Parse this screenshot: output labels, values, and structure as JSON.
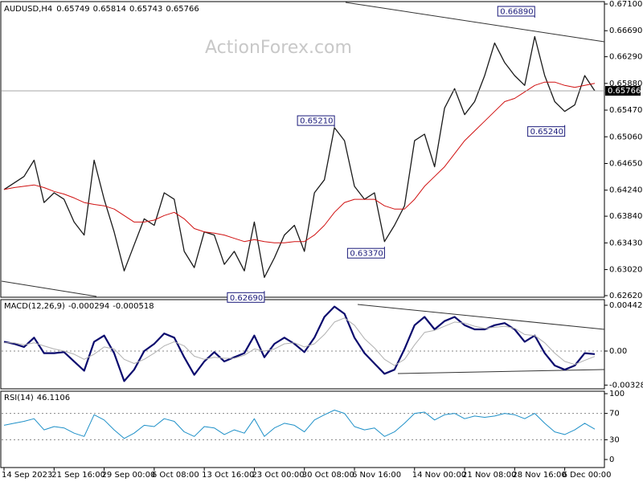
{
  "watermark": "ActionForex.com",
  "chart_data": [
    {
      "type": "line",
      "title": "AUDUSD,H4",
      "last_bar": [
        0.65749,
        0.65814,
        0.65743
      ],
      "ylim": [
        0.62595,
        0.67137
      ],
      "yticks": [
        {
          "value": 0.671,
          "label": "0.67100"
        },
        {
          "value": 0.6669,
          "label": "0.66690"
        },
        {
          "value": 0.6629,
          "label": "0.66290"
        },
        {
          "value": 0.6588,
          "label": "0.65880"
        },
        {
          "value": 0.6547,
          "label": "0.65470"
        },
        {
          "value": 0.6506,
          "label": "0.65060"
        },
        {
          "value": 0.6465,
          "label": "0.64650"
        },
        {
          "value": 0.6424,
          "label": "0.64240"
        },
        {
          "value": 0.6384,
          "label": "0.63840"
        },
        {
          "value": 0.6343,
          "label": "0.63430"
        },
        {
          "value": 0.6302,
          "label": "0.63020"
        },
        {
          "value": 0.6262,
          "label": "0.62620"
        }
      ],
      "grid": false,
      "series": [
        {
          "color": "#1a1a1a",
          "values": [
            0.6425,
            0.6435,
            0.6445,
            0.647,
            0.6405,
            0.642,
            0.641,
            0.6375,
            0.6355,
            0.647,
            0.641,
            0.636,
            0.63,
            0.634,
            0.638,
            0.637,
            0.642,
            0.641,
            0.633,
            0.6305,
            0.636,
            0.6355,
            0.631,
            0.633,
            0.63,
            0.6375,
            0.629,
            0.632,
            0.6355,
            0.637,
            0.633,
            0.642,
            0.644,
            0.652,
            0.65,
            0.643,
            0.641,
            0.642,
            0.6345,
            0.637,
            0.64,
            0.65,
            0.651,
            0.646,
            0.655,
            0.658,
            0.654,
            0.656,
            0.66,
            0.665,
            0.662,
            0.66,
            0.6585,
            0.666,
            0.66,
            0.656,
            0.6545,
            0.6555,
            0.66,
            0.65766
          ]
        },
        {
          "color": "#d01010",
          "values": [
            0.6425,
            0.6428,
            0.643,
            0.6432,
            0.6428,
            0.6422,
            0.6418,
            0.6412,
            0.6405,
            0.6402,
            0.64,
            0.6395,
            0.6385,
            0.6375,
            0.6375,
            0.6378,
            0.6385,
            0.639,
            0.638,
            0.6365,
            0.636,
            0.6358,
            0.6355,
            0.635,
            0.6345,
            0.6348,
            0.6345,
            0.6343,
            0.6343,
            0.6345,
            0.6345,
            0.6355,
            0.637,
            0.639,
            0.6405,
            0.641,
            0.641,
            0.641,
            0.64,
            0.6395,
            0.6395,
            0.641,
            0.643,
            0.6445,
            0.646,
            0.648,
            0.65,
            0.6515,
            0.653,
            0.6545,
            0.656,
            0.6565,
            0.6575,
            0.6585,
            0.659,
            0.659,
            0.6585,
            0.6582,
            0.6585,
            0.6588
          ]
        }
      ],
      "annotations": [
        {
          "x": 53,
          "value": 0.6689,
          "label": "0.66890"
        },
        {
          "x": 33,
          "value": 0.6521,
          "label": "0.65210"
        },
        {
          "x": 56,
          "value": 0.6524,
          "label": "0.65240"
        },
        {
          "x": 38,
          "value": 0.6337,
          "label": "0.63370"
        },
        {
          "x": 26,
          "value": 0.6269,
          "label": "0.62690"
        }
      ]
    },
    {
      "type": "line",
      "title": "MACD(12,26,9)",
      "ylim": [
        -0.003649,
        0.00497
      ],
      "yticks": [
        0.004427,
        {
          "value": 0,
          "label": "0.00"
        },
        -0.003288
      ],
      "grid": true,
      "series": [
        {
          "color": "#0a0a6e",
          "values": [
            0.0009,
            0.0007,
            0.0004,
            0.0013,
            -0.0002,
            -0.0002,
            -0.0001,
            -0.001,
            -0.0019,
            0.0009,
            0.0015,
            -0.0002,
            -0.0029,
            -0.0018,
            0,
            0.0007,
            0.0017,
            0.0013,
            -0.0006,
            -0.0023,
            -0.001,
            -0.0001,
            -0.001,
            -0.0006,
            -0.0002,
            0.0015,
            -0.0006,
            0.0007,
            0.0013,
            0.0007,
            -0.0001,
            0.0013,
            0.0033,
            0.0043,
            0.0036,
            0.0013,
            -0.0002,
            -0.0012,
            -0.0022,
            -0.0018,
            0.0002,
            0.0025,
            0.0033,
            0.0021,
            0.0029,
            0.0033,
            0.0025,
            0.0021,
            0.0021,
            0.0025,
            0.0027,
            0.0021,
            0.0009,
            0.0015,
            -0.0002,
            -0.0014,
            -0.0018,
            -0.0014,
            -0.0002,
            -0.000294
          ]
        },
        {
          "color": "#b0b0b0",
          "values": [
            0.0008,
            0.0008,
            0.0006,
            0.0008,
            0.0005,
            0.0002,
            0,
            -0.0003,
            -0.0008,
            -0.0003,
            0.0004,
            0.0002,
            -0.0008,
            -0.0012,
            -0.0008,
            -0.0002,
            0.0005,
            0.0009,
            0.0005,
            -0.0005,
            -0.0008,
            -0.0006,
            -0.0007,
            -0.0007,
            -0.0004,
            0.0002,
            0,
            0.0002,
            0.0007,
            0.0008,
            0.0004,
            0.0007,
            0.0016,
            0.0028,
            0.0032,
            0.0025,
            0.0012,
            0.0003,
            -0.0008,
            -0.0014,
            -0.0008,
            0.0006,
            0.0018,
            0.002,
            0.0024,
            0.0028,
            0.0027,
            0.0024,
            0.0022,
            0.0023,
            0.0024,
            0.0022,
            0.0016,
            0.0015,
            0.0008,
            -0.0002,
            -0.001,
            -0.0013,
            -0.0009,
            -0.000518
          ]
        }
      ]
    },
    {
      "type": "line",
      "title": "RSI(14)",
      "ylim": [
        -12.2,
        103.7
      ],
      "yticks": [
        100,
        70,
        30,
        0
      ],
      "grid": true,
      "series": [
        {
          "color": "#1e90c8",
          "values": [
            52,
            55,
            58,
            62,
            45,
            50,
            48,
            40,
            35,
            68,
            60,
            45,
            32,
            40,
            52,
            50,
            62,
            58,
            42,
            35,
            50,
            48,
            38,
            45,
            40,
            62,
            35,
            48,
            55,
            52,
            42,
            60,
            68,
            75,
            70,
            50,
            45,
            48,
            35,
            42,
            55,
            70,
            72,
            60,
            68,
            70,
            62,
            66,
            64,
            66,
            70,
            68,
            62,
            70,
            55,
            42,
            38,
            45,
            55,
            46.1106
          ]
        }
      ],
      "xticks": [
        {
          "value": 0,
          "label": "14 Sep 2023"
        },
        {
          "value": 5,
          "label": "21 Sep 16:00"
        },
        {
          "value": 10,
          "label": "29 Sep 00:00"
        },
        {
          "value": 15,
          "label": "6 Oct 08:00"
        },
        {
          "value": 20,
          "label": "13 Oct 16:00"
        },
        {
          "value": 25,
          "label": "23 Oct 00:00"
        },
        {
          "value": 30,
          "label": "30 Oct 08:00"
        },
        {
          "value": 35,
          "label": "6 Nov 16:00"
        },
        {
          "value": 41,
          "label": "14 Nov 00:00"
        },
        {
          "value": 46,
          "label": "21 Nov 08:00"
        },
        {
          "value": 51,
          "label": "28 Nov 16:00"
        },
        {
          "value": 56,
          "label": "6 Dec 00:00"
        }
      ]
    }
  ]
}
